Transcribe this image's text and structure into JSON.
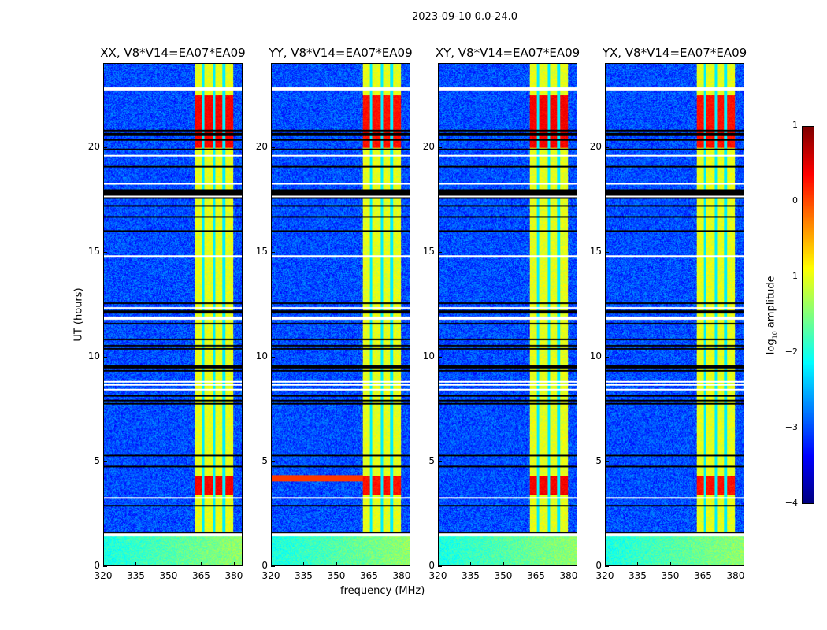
{
  "chart_data": {
    "type": "heatmap",
    "title": "2023-09-10 0.0-24.0",
    "xlabel": "frequency (MHz)",
    "ylabel": "UT (hours)",
    "xlim": [
      320,
      384
    ],
    "ylim": [
      0,
      24
    ],
    "xticks": [
      "320",
      "335",
      "350",
      "365",
      "380"
    ],
    "xtick_values": [
      320,
      335,
      350,
      365,
      380
    ],
    "yticks": [
      "0",
      "5",
      "10",
      "15",
      "20"
    ],
    "ytick_values": [
      0,
      5,
      10,
      15,
      20
    ],
    "panels": [
      {
        "title": "XX, V8*V14=EA07*EA09"
      },
      {
        "title": "YY, V8*V14=EA07*EA09"
      },
      {
        "title": "XY, V8*V14=EA07*EA09"
      },
      {
        "title": "YX, V8*V14=EA07*EA09"
      }
    ],
    "colorbar": {
      "label_main": "log",
      "label_sub": "10",
      "label_rest": " amplitude",
      "range": [
        -4,
        1
      ],
      "colormap": "jet",
      "ticks": [
        "1",
        "0",
        "−1",
        "−2",
        "−3",
        "−4"
      ],
      "tick_values": [
        1,
        0,
        -1,
        -2,
        -3,
        -4
      ]
    },
    "features": {
      "background_level": -3,
      "band_mhz": [
        362,
        380
      ],
      "band_level": -1,
      "channel_gaps_mhz": [
        366,
        371,
        375.5
      ],
      "strong_hours": [
        [
          3.4,
          4.3
        ],
        [
          20,
          22.5
        ]
      ],
      "strong_level": 0.4,
      "low_noise_hours": [
        0,
        1.4
      ],
      "low_noise_level": -2,
      "flagged_hours": [
        [
          1.4,
          1.55
        ],
        [
          11.8,
          11.95
        ],
        [
          22.7,
          22.85
        ],
        [
          8.75,
          8.85
        ]
      ]
    }
  }
}
